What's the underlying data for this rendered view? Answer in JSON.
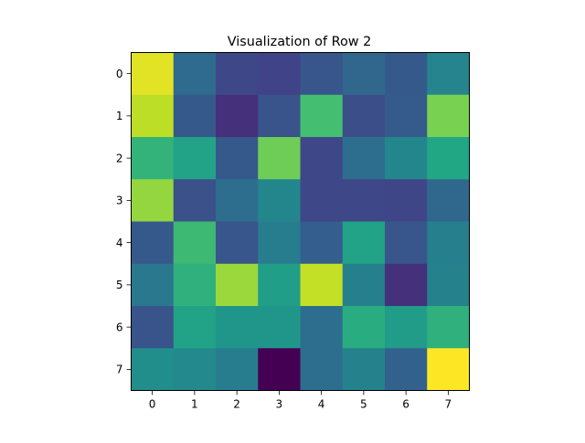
{
  "chart_data": {
    "type": "heatmap",
    "title": "Visualization of Row 2",
    "xlabel": "",
    "ylabel": "",
    "colormap": "viridis",
    "vmin": 0,
    "vmax": 1,
    "x_ticks": [
      "0",
      "1",
      "2",
      "3",
      "4",
      "5",
      "6",
      "7"
    ],
    "y_ticks": [
      "0",
      "1",
      "2",
      "3",
      "4",
      "5",
      "6",
      "7"
    ],
    "values": [
      [
        0.96,
        0.35,
        0.22,
        0.2,
        0.27,
        0.33,
        0.28,
        0.45
      ],
      [
        0.9,
        0.28,
        0.14,
        0.26,
        0.7,
        0.24,
        0.29,
        0.8
      ],
      [
        0.65,
        0.58,
        0.28,
        0.78,
        0.22,
        0.36,
        0.46,
        0.6
      ],
      [
        0.84,
        0.25,
        0.36,
        0.46,
        0.22,
        0.22,
        0.21,
        0.34
      ],
      [
        0.28,
        0.68,
        0.27,
        0.42,
        0.3,
        0.58,
        0.27,
        0.43
      ],
      [
        0.4,
        0.64,
        0.85,
        0.56,
        0.91,
        0.43,
        0.14,
        0.44
      ],
      [
        0.26,
        0.58,
        0.52,
        0.52,
        0.36,
        0.62,
        0.55,
        0.64
      ],
      [
        0.49,
        0.47,
        0.42,
        0.0,
        0.36,
        0.44,
        0.31,
        1.0
      ]
    ]
  }
}
